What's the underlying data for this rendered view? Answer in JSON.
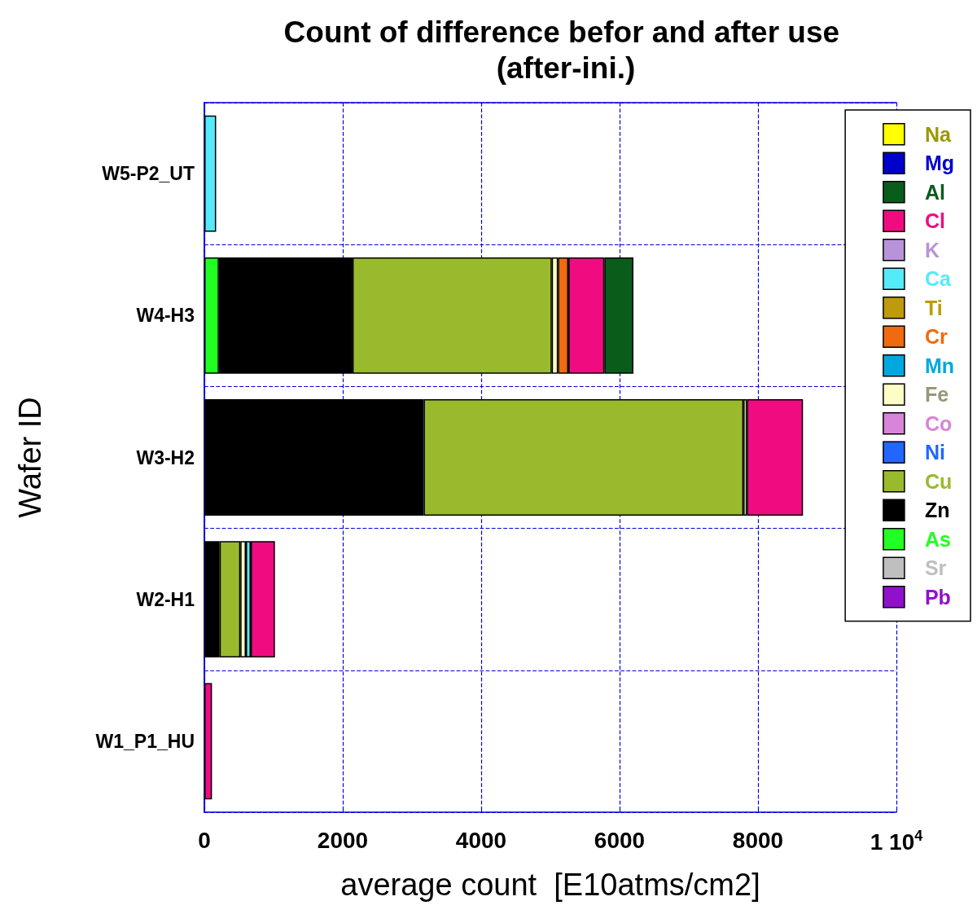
{
  "chart_data": {
    "type": "bar",
    "orientation": "horizontal",
    "stacked": true,
    "title": "Count of difference befor and after use (after-ini.)",
    "xlabel": "average count  [E10atms/cm2]",
    "ylabel": "Wafer ID",
    "categories": [
      "W5-P2_UT",
      "W4-H3",
      "W3-H2",
      "W2-H1",
      "W1_P1_HU"
    ],
    "series": [
      {
        "name": "Pb",
        "color": "#9010cc",
        "values": [
          null,
          null,
          null,
          null,
          null
        ]
      },
      {
        "name": "Sr",
        "color": "#bfbfbf",
        "values": [
          null,
          null,
          null,
          null,
          null
        ]
      },
      {
        "name": "As",
        "color": "#22ff22",
        "values": [
          null,
          210,
          null,
          null,
          null
        ]
      },
      {
        "name": "Zn",
        "color": "#000000",
        "values": [
          null,
          1930,
          3170,
          220,
          null
        ]
      },
      {
        "name": "Cu",
        "color": "#9aba2e",
        "values": [
          null,
          2880,
          4620,
          300,
          null
        ]
      },
      {
        "name": "Ni",
        "color": "#2266ff",
        "values": [
          null,
          null,
          null,
          null,
          null
        ]
      },
      {
        "name": "Co",
        "color": "#d884d8",
        "values": [
          null,
          null,
          null,
          null,
          null
        ]
      },
      {
        "name": "Fe",
        "color": "#fdfdc6",
        "values": [
          null,
          90,
          50,
          80,
          null
        ]
      },
      {
        "name": "Mn",
        "color": "#00a8e0",
        "values": [
          null,
          null,
          null,
          null,
          null
        ]
      },
      {
        "name": "Cr",
        "color": "#f06a10",
        "values": [
          null,
          150,
          null,
          null,
          null
        ]
      },
      {
        "name": "Ti",
        "color": "#bf9a0a",
        "values": [
          null,
          null,
          null,
          null,
          null
        ]
      },
      {
        "name": "Ca",
        "color": "#55eaf8",
        "values": [
          170,
          null,
          null,
          70,
          null
        ]
      },
      {
        "name": "K",
        "color": "#b993d9",
        "values": [
          null,
          null,
          null,
          null,
          null
        ]
      },
      {
        "name": "Cl",
        "color": "#f00c80",
        "values": [
          null,
          520,
          810,
          350,
          110
        ]
      },
      {
        "name": "Al",
        "color": "#0a5c1a",
        "values": [
          null,
          420,
          null,
          null,
          null
        ]
      },
      {
        "name": "Mg",
        "color": "#0000cc",
        "values": [
          null,
          null,
          null,
          null,
          null
        ]
      },
      {
        "name": "Na",
        "color": "#ffff00",
        "values": [
          null,
          null,
          null,
          null,
          null
        ]
      }
    ],
    "xlim": [
      0,
      10000
    ],
    "xticks": [
      0,
      2000,
      4000,
      6000,
      8000,
      {
        "value": 10000,
        "label": "1 10$^{4}$"
      }
    ],
    "grid": true,
    "legend": "right"
  }
}
